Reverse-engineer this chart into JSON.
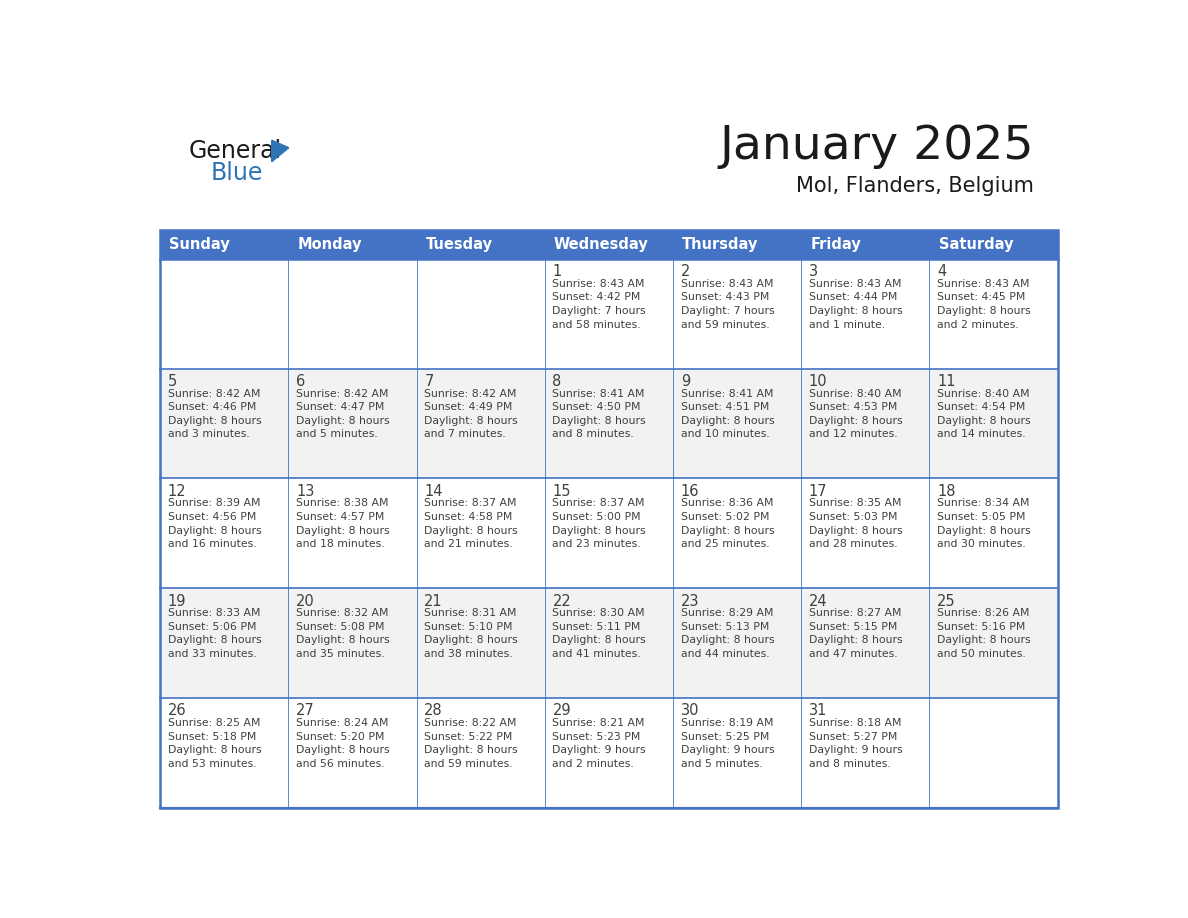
{
  "title": "January 2025",
  "subtitle": "Mol, Flanders, Belgium",
  "header_bg_color": "#4472C4",
  "header_text_color": "#FFFFFF",
  "cell_bg_white": "#FFFFFF",
  "cell_bg_gray": "#F2F2F2",
  "grid_color": "#4472C4",
  "text_color": "#404040",
  "day_headers": [
    "Sunday",
    "Monday",
    "Tuesday",
    "Wednesday",
    "Thursday",
    "Friday",
    "Saturday"
  ],
  "calendar_data": [
    [
      {
        "day": "",
        "info": ""
      },
      {
        "day": "",
        "info": ""
      },
      {
        "day": "",
        "info": ""
      },
      {
        "day": "1",
        "info": "Sunrise: 8:43 AM\nSunset: 4:42 PM\nDaylight: 7 hours\nand 58 minutes."
      },
      {
        "day": "2",
        "info": "Sunrise: 8:43 AM\nSunset: 4:43 PM\nDaylight: 7 hours\nand 59 minutes."
      },
      {
        "day": "3",
        "info": "Sunrise: 8:43 AM\nSunset: 4:44 PM\nDaylight: 8 hours\nand 1 minute."
      },
      {
        "day": "4",
        "info": "Sunrise: 8:43 AM\nSunset: 4:45 PM\nDaylight: 8 hours\nand 2 minutes."
      }
    ],
    [
      {
        "day": "5",
        "info": "Sunrise: 8:42 AM\nSunset: 4:46 PM\nDaylight: 8 hours\nand 3 minutes."
      },
      {
        "day": "6",
        "info": "Sunrise: 8:42 AM\nSunset: 4:47 PM\nDaylight: 8 hours\nand 5 minutes."
      },
      {
        "day": "7",
        "info": "Sunrise: 8:42 AM\nSunset: 4:49 PM\nDaylight: 8 hours\nand 7 minutes."
      },
      {
        "day": "8",
        "info": "Sunrise: 8:41 AM\nSunset: 4:50 PM\nDaylight: 8 hours\nand 8 minutes."
      },
      {
        "day": "9",
        "info": "Sunrise: 8:41 AM\nSunset: 4:51 PM\nDaylight: 8 hours\nand 10 minutes."
      },
      {
        "day": "10",
        "info": "Sunrise: 8:40 AM\nSunset: 4:53 PM\nDaylight: 8 hours\nand 12 minutes."
      },
      {
        "day": "11",
        "info": "Sunrise: 8:40 AM\nSunset: 4:54 PM\nDaylight: 8 hours\nand 14 minutes."
      }
    ],
    [
      {
        "day": "12",
        "info": "Sunrise: 8:39 AM\nSunset: 4:56 PM\nDaylight: 8 hours\nand 16 minutes."
      },
      {
        "day": "13",
        "info": "Sunrise: 8:38 AM\nSunset: 4:57 PM\nDaylight: 8 hours\nand 18 minutes."
      },
      {
        "day": "14",
        "info": "Sunrise: 8:37 AM\nSunset: 4:58 PM\nDaylight: 8 hours\nand 21 minutes."
      },
      {
        "day": "15",
        "info": "Sunrise: 8:37 AM\nSunset: 5:00 PM\nDaylight: 8 hours\nand 23 minutes."
      },
      {
        "day": "16",
        "info": "Sunrise: 8:36 AM\nSunset: 5:02 PM\nDaylight: 8 hours\nand 25 minutes."
      },
      {
        "day": "17",
        "info": "Sunrise: 8:35 AM\nSunset: 5:03 PM\nDaylight: 8 hours\nand 28 minutes."
      },
      {
        "day": "18",
        "info": "Sunrise: 8:34 AM\nSunset: 5:05 PM\nDaylight: 8 hours\nand 30 minutes."
      }
    ],
    [
      {
        "day": "19",
        "info": "Sunrise: 8:33 AM\nSunset: 5:06 PM\nDaylight: 8 hours\nand 33 minutes."
      },
      {
        "day": "20",
        "info": "Sunrise: 8:32 AM\nSunset: 5:08 PM\nDaylight: 8 hours\nand 35 minutes."
      },
      {
        "day": "21",
        "info": "Sunrise: 8:31 AM\nSunset: 5:10 PM\nDaylight: 8 hours\nand 38 minutes."
      },
      {
        "day": "22",
        "info": "Sunrise: 8:30 AM\nSunset: 5:11 PM\nDaylight: 8 hours\nand 41 minutes."
      },
      {
        "day": "23",
        "info": "Sunrise: 8:29 AM\nSunset: 5:13 PM\nDaylight: 8 hours\nand 44 minutes."
      },
      {
        "day": "24",
        "info": "Sunrise: 8:27 AM\nSunset: 5:15 PM\nDaylight: 8 hours\nand 47 minutes."
      },
      {
        "day": "25",
        "info": "Sunrise: 8:26 AM\nSunset: 5:16 PM\nDaylight: 8 hours\nand 50 minutes."
      }
    ],
    [
      {
        "day": "26",
        "info": "Sunrise: 8:25 AM\nSunset: 5:18 PM\nDaylight: 8 hours\nand 53 minutes."
      },
      {
        "day": "27",
        "info": "Sunrise: 8:24 AM\nSunset: 5:20 PM\nDaylight: 8 hours\nand 56 minutes."
      },
      {
        "day": "28",
        "info": "Sunrise: 8:22 AM\nSunset: 5:22 PM\nDaylight: 8 hours\nand 59 minutes."
      },
      {
        "day": "29",
        "info": "Sunrise: 8:21 AM\nSunset: 5:23 PM\nDaylight: 9 hours\nand 2 minutes."
      },
      {
        "day": "30",
        "info": "Sunrise: 8:19 AM\nSunset: 5:25 PM\nDaylight: 9 hours\nand 5 minutes."
      },
      {
        "day": "31",
        "info": "Sunrise: 8:18 AM\nSunset: 5:27 PM\nDaylight: 9 hours\nand 8 minutes."
      },
      {
        "day": "",
        "info": ""
      }
    ]
  ],
  "logo_general_color": "#1a1a1a",
  "logo_blue_color": "#2E75B6",
  "logo_triangle_color": "#2E75B6",
  "fig_width": 11.88,
  "fig_height": 9.18,
  "dpi": 100
}
